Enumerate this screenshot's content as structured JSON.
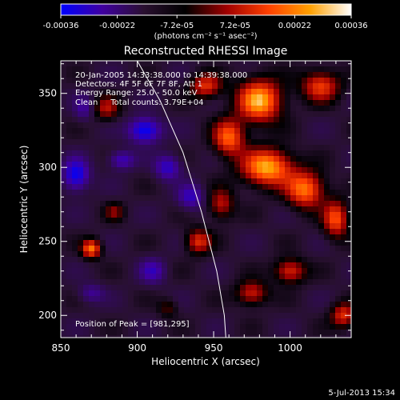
{
  "chart_data": {
    "type": "heatmap",
    "title": "Reconstructed RHESSI Image",
    "xlabel": "Heliocentric X (arcsec)",
    "ylabel": "Heliocentric Y (arcsec)",
    "xlim": [
      850,
      1040
    ],
    "ylim": [
      185,
      372
    ],
    "x_ticks": [
      850,
      900,
      950,
      1000
    ],
    "y_ticks": [
      200,
      250,
      300,
      350
    ],
    "grid": false,
    "colorbar": {
      "position": "top",
      "range": [
        -0.00036,
        0.00036
      ],
      "ticks": [
        -0.00036,
        -0.00022,
        -7.2e-05,
        7.2e-05,
        0.00022,
        0.00036
      ],
      "tick_labels": [
        "-0.00036",
        "-0.00022",
        "-7.2e-05",
        "7.2e-05",
        "0.00022",
        "0.00036"
      ],
      "unit_label": "(photons cm⁻² s⁻¹ asec⁻²)",
      "colors": [
        "#0000ff",
        "#4000a0",
        "#2a1030",
        "#000000",
        "#a00000",
        "#ff4000",
        "#ffa000",
        "#ffffff"
      ]
    },
    "annotations": [
      "20-Jan-2005 14:33:38.000 to 14:39:38.000",
      "Detectors: 4F 5F 6F 7F 8F, Att 1",
      "Energy Range: 25.0 - 50.0 keV",
      "Clean     Total counts: 3.79E+04"
    ],
    "peak_label": "Position of Peak = [981,295]",
    "peak_position": [
      981,
      295
    ],
    "limb": [
      [
        900,
        372
      ],
      [
        915,
        345
      ],
      [
        930,
        310
      ],
      [
        942,
        270
      ],
      [
        952,
        230
      ],
      [
        957,
        200
      ],
      [
        958,
        185
      ]
    ],
    "hotspots": [
      {
        "x": 980,
        "y": 345,
        "value": 0.00036,
        "sx": 14,
        "sy": 14
      },
      {
        "x": 985,
        "y": 300,
        "value": 0.00036,
        "sx": 16,
        "sy": 12
      },
      {
        "x": 1010,
        "y": 285,
        "value": 0.0003,
        "sx": 12,
        "sy": 12
      },
      {
        "x": 960,
        "y": 320,
        "value": 0.00028,
        "sx": 10,
        "sy": 12
      },
      {
        "x": 1020,
        "y": 355,
        "value": 0.00024,
        "sx": 12,
        "sy": 10
      },
      {
        "x": 1030,
        "y": 265,
        "value": 0.00026,
        "sx": 8,
        "sy": 12
      },
      {
        "x": 1000,
        "y": 230,
        "value": 0.00022,
        "sx": 10,
        "sy": 8
      },
      {
        "x": 975,
        "y": 215,
        "value": 0.0002,
        "sx": 10,
        "sy": 8
      },
      {
        "x": 1035,
        "y": 200,
        "value": 0.00022,
        "sx": 8,
        "sy": 8
      },
      {
        "x": 945,
        "y": 355,
        "value": 0.00022,
        "sx": 10,
        "sy": 8
      },
      {
        "x": 880,
        "y": 340,
        "value": 0.00016,
        "sx": 8,
        "sy": 8
      },
      {
        "x": 870,
        "y": 245,
        "value": 0.0003,
        "sx": 6,
        "sy": 6
      },
      {
        "x": 940,
        "y": 250,
        "value": 0.00022,
        "sx": 8,
        "sy": 8
      },
      {
        "x": 955,
        "y": 275,
        "value": 0.00018,
        "sx": 8,
        "sy": 10
      },
      {
        "x": 885,
        "y": 270,
        "value": 0.00012,
        "sx": 6,
        "sy": 6
      },
      {
        "x": 920,
        "y": 205,
        "value": 0.0001,
        "sx": 6,
        "sy": 6
      },
      {
        "x": 905,
        "y": 325,
        "value": -0.0003,
        "sx": 10,
        "sy": 8
      },
      {
        "x": 860,
        "y": 295,
        "value": -0.00028,
        "sx": 8,
        "sy": 10
      },
      {
        "x": 890,
        "y": 305,
        "value": -0.00018,
        "sx": 8,
        "sy": 6
      },
      {
        "x": 920,
        "y": 300,
        "value": -0.0002,
        "sx": 8,
        "sy": 8
      },
      {
        "x": 910,
        "y": 230,
        "value": -0.00016,
        "sx": 8,
        "sy": 8
      },
      {
        "x": 935,
        "y": 280,
        "value": -0.00018,
        "sx": 8,
        "sy": 8
      },
      {
        "x": 870,
        "y": 215,
        "value": -0.00012,
        "sx": 8,
        "sy": 6
      },
      {
        "x": 865,
        "y": 340,
        "value": -0.00012,
        "sx": 6,
        "sy": 8
      }
    ]
  },
  "timestamp": "5-Jul-2013 15:34"
}
